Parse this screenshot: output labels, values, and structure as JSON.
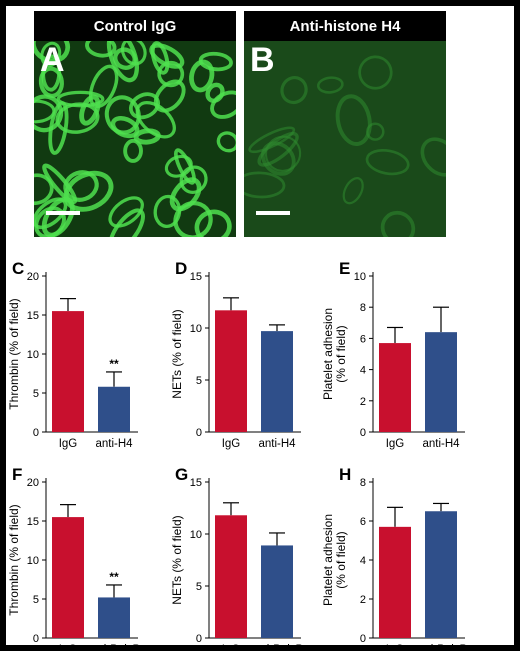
{
  "micrographs": [
    {
      "letter": "A",
      "title": "Control IgG",
      "tone": "bright"
    },
    {
      "letter": "B",
      "title": "Anti-histone H4",
      "tone": "dim"
    }
  ],
  "colors": {
    "igg": "#c8102e",
    "treated": "#2f4f8a",
    "green_bright": "#3fd23f",
    "green_dim": "#1f6a1f"
  },
  "chart_data": [
    {
      "panel": "C",
      "type": "bar",
      "categories": [
        "IgG",
        "anti-H4"
      ],
      "values": [
        15.5,
        5.8
      ],
      "errors": [
        1.6,
        1.9
      ],
      "ylabel": "Thrombin (% of field)",
      "ylim": [
        0,
        20
      ],
      "yticks": [
        0,
        5,
        10,
        15,
        20
      ],
      "annotations": [
        "",
        "**"
      ]
    },
    {
      "panel": "D",
      "type": "bar",
      "categories": [
        "IgG",
        "anti-H4"
      ],
      "values": [
        11.7,
        9.7
      ],
      "errors": [
        1.2,
        0.6
      ],
      "ylabel": "NETs (% of field)",
      "ylim": [
        0,
        15
      ],
      "yticks": [
        0,
        5,
        10,
        15
      ],
      "annotations": [
        "",
        ""
      ]
    },
    {
      "panel": "E",
      "type": "bar",
      "categories": [
        "IgG",
        "anti-H4"
      ],
      "values": [
        5.7,
        6.4
      ],
      "errors": [
        1.0,
        1.6
      ],
      "ylabel": "Platelet adhesion (% of field)",
      "ylabel_lines": [
        "Platelet adhesion",
        "(% of field)"
      ],
      "ylim": [
        0,
        10
      ],
      "yticks": [
        0,
        2,
        4,
        6,
        8,
        10
      ],
      "annotations": [
        "",
        ""
      ]
    },
    {
      "panel": "F",
      "type": "bar",
      "categories": [
        "IgG",
        "anti-PolyP"
      ],
      "values": [
        15.5,
        5.2
      ],
      "errors": [
        1.6,
        1.6
      ],
      "ylabel": "Thrombin (% of field)",
      "ylim": [
        0,
        20
      ],
      "yticks": [
        0,
        5,
        10,
        15,
        20
      ],
      "annotations": [
        "",
        "**"
      ]
    },
    {
      "panel": "G",
      "type": "bar",
      "categories": [
        "IgG",
        "anti-PolyP"
      ],
      "values": [
        11.8,
        8.9
      ],
      "errors": [
        1.2,
        1.2
      ],
      "ylabel": "NETs (% of field)",
      "ylim": [
        0,
        15
      ],
      "yticks": [
        0,
        5,
        10,
        15
      ],
      "annotations": [
        "",
        ""
      ]
    },
    {
      "panel": "H",
      "type": "bar",
      "categories": [
        "IgG",
        "anti-PolyP"
      ],
      "values": [
        5.7,
        6.5
      ],
      "errors": [
        1.0,
        0.4
      ],
      "ylabel": "Platelet adhesion (% of field)",
      "ylabel_lines": [
        "Platelet adhesion",
        "(% of field)"
      ],
      "ylim": [
        0,
        8
      ],
      "yticks": [
        0,
        2,
        4,
        6,
        8
      ],
      "annotations": [
        "",
        ""
      ]
    }
  ]
}
